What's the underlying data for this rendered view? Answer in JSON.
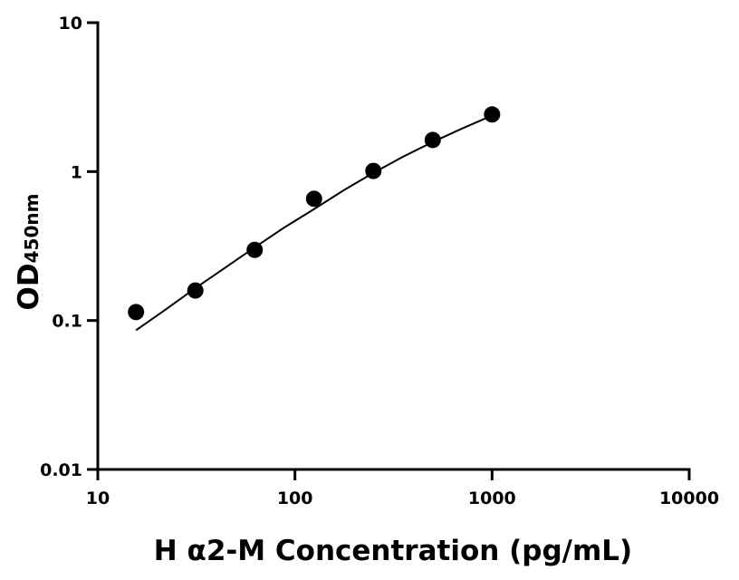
{
  "chart_data": {
    "type": "scatter",
    "x_label": "H α2-M Concentration (pg/mL)",
    "y_label": "OD",
    "y_label_sub": "450nm",
    "xscale": "log",
    "yscale": "log",
    "xlim": [
      10,
      10000
    ],
    "ylim": [
      0.01,
      10
    ],
    "xticks": [
      10,
      100,
      1000,
      10000
    ],
    "yticks": [
      0.01,
      0.1,
      1,
      10
    ],
    "series": [
      {
        "mode": "markers",
        "color": "#000000",
        "x": [
          15.625,
          31.25,
          62.5,
          125,
          250,
          500,
          1000
        ],
        "values": [
          0.114,
          0.159,
          0.298,
          0.657,
          1.01,
          1.63,
          2.42
        ]
      },
      {
        "mode": "line",
        "color": "#000000",
        "x": [
          15.625,
          22,
          31.25,
          44,
          62.5,
          88,
          125,
          177,
          250,
          354,
          500,
          707,
          1000
        ],
        "values": [
          0.086,
          0.118,
          0.165,
          0.225,
          0.31,
          0.42,
          0.56,
          0.75,
          0.98,
          1.26,
          1.58,
          1.95,
          2.38
        ]
      }
    ]
  }
}
